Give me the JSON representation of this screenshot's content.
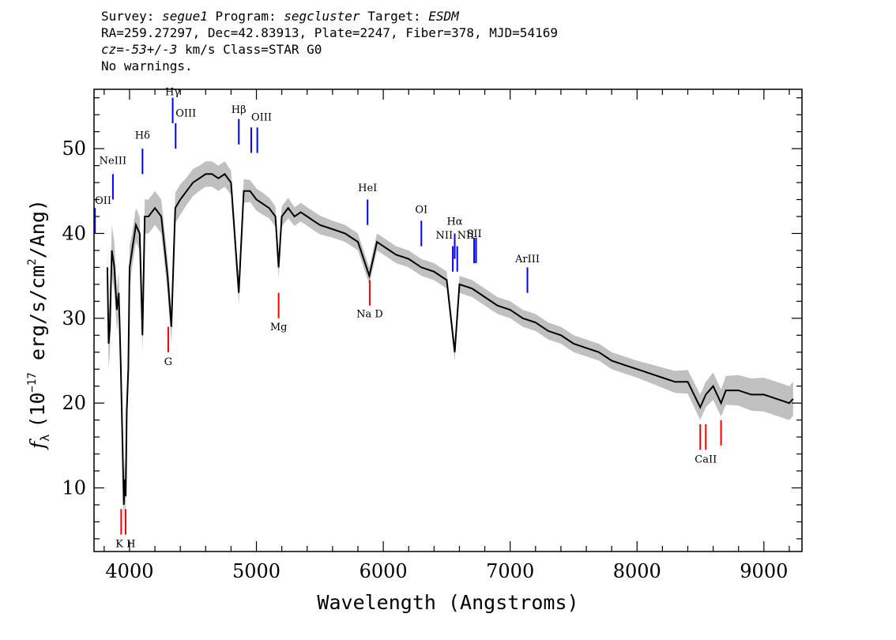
{
  "header": {
    "survey_label": "Survey:",
    "survey": "segue1",
    "program_label": "Program:",
    "program": "segcluster",
    "target_label": "Target:",
    "target": "ESDM",
    "line2": "RA=259.27297, Dec=42.83913, Plate=2247, Fiber=378, MJD=54169",
    "cz_label": "cz=",
    "cz_value": "-53+/-3",
    "cz_rest": " km/s Class=STAR G0",
    "line4": "No warnings."
  },
  "chart_data": {
    "type": "line",
    "xlabel": "Wavelength (Angstroms)",
    "ylabel_text": "f",
    "ylabel_sub": "λ",
    "ylabel_unit_pre": "(10",
    "ylabel_unit_exp": "−17",
    "ylabel_unit_mid": " erg/s/cm",
    "ylabel_unit_exp2": "2",
    "ylabel_unit_post": "/Ang)",
    "xlim": [
      3720,
      9300
    ],
    "ylim": [
      2.5,
      57
    ],
    "x_ticks": [
      4000,
      5000,
      6000,
      7000,
      8000,
      9000
    ],
    "x_tick_labels": [
      "4000",
      "5000",
      "6000",
      "7000",
      "8000",
      "9000"
    ],
    "y_ticks": [
      10,
      20,
      30,
      40,
      50
    ],
    "y_tick_labels": [
      "10",
      "20",
      "30",
      "40",
      "50"
    ],
    "colors": {
      "flux": "#000000",
      "error_band": "#c0c0c0",
      "emission": "#0000ff",
      "absorption": "#ff0000"
    },
    "series": [
      {
        "x": [
          3825,
          3835,
          3845,
          3860,
          3880,
          3900,
          3915,
          3930,
          3945,
          3955,
          3962,
          3970,
          3978,
          3990,
          4000,
          4020,
          4050,
          4080,
          4102,
          4120,
          4150,
          4200,
          4250,
          4300,
          4330,
          4360,
          4400,
          4450,
          4500,
          4550,
          4600,
          4650,
          4700,
          4750,
          4800,
          4861,
          4900,
          4950,
          5000,
          5050,
          5100,
          5150,
          5175,
          5200,
          5250,
          5300,
          5350,
          5400,
          5450,
          5500,
          5600,
          5700,
          5800,
          5890,
          5950,
          6000,
          6100,
          6200,
          6300,
          6400,
          6500,
          6563,
          6600,
          6700,
          6800,
          6900,
          7000,
          7100,
          7200,
          7300,
          7400,
          7500,
          7600,
          7700,
          7800,
          7900,
          8000,
          8100,
          8200,
          8300,
          8400,
          8498,
          8542,
          8600,
          8662,
          8700,
          8800,
          8900,
          9000,
          9100,
          9200,
          9230
        ],
        "y": [
          36,
          27,
          29,
          38,
          36,
          31,
          33,
          25,
          15,
          8,
          11,
          9,
          19,
          24,
          36,
          38,
          41,
          40,
          28,
          42,
          42,
          43,
          42,
          35,
          29,
          43,
          44,
          45,
          46,
          46.5,
          47,
          47,
          46.5,
          47,
          46,
          33,
          45,
          45,
          44,
          43.5,
          43,
          42,
          36,
          42,
          43,
          42,
          42.5,
          42,
          41.5,
          41,
          40.5,
          40,
          39,
          35,
          39,
          38.5,
          37.5,
          37,
          36,
          35.5,
          34.5,
          26,
          34,
          33.5,
          32.5,
          31.5,
          31,
          30,
          29.5,
          28.5,
          28,
          27,
          26.5,
          26,
          25,
          24.5,
          24,
          23.5,
          23,
          22.5,
          22.5,
          19.5,
          21,
          22,
          20,
          21.5,
          21.5,
          21,
          21,
          20.5,
          20,
          20.5
        ],
        "err": [
          3,
          3,
          3,
          3,
          3,
          2.5,
          2.5,
          2.5,
          2.5,
          2.5,
          2.5,
          2.5,
          2.5,
          2.5,
          2.5,
          2,
          2,
          2,
          2,
          2,
          2,
          2,
          2,
          2,
          2,
          1.8,
          1.8,
          1.6,
          1.6,
          1.5,
          1.5,
          1.5,
          1.5,
          1.5,
          1.4,
          1.4,
          1.4,
          1.3,
          1.3,
          1.3,
          1.2,
          1.2,
          1.2,
          1.2,
          1.2,
          1.1,
          1.1,
          1.1,
          1.1,
          1.1,
          1,
          1,
          1,
          1,
          1,
          1,
          1,
          1,
          1,
          1,
          1,
          1,
          1,
          1,
          1,
          1,
          1,
          1,
          1,
          1,
          1,
          1,
          1,
          1,
          1,
          1,
          1,
          1.1,
          1.2,
          1.3,
          1.4,
          1.5,
          1.5,
          1.6,
          1.6,
          1.7,
          1.8,
          1.9,
          2,
          2,
          2,
          2
        ]
      }
    ],
    "emission_lines": [
      {
        "label": "OII",
        "x": 3727,
        "y0": 40,
        "y1": 43,
        "label_y": 43.5,
        "anchor": "start"
      },
      {
        "label": "NeIII",
        "x": 3869,
        "y0": 44,
        "y1": 47,
        "label_y": 48.2,
        "anchor": "middle"
      },
      {
        "label": "Hδ",
        "x": 4102,
        "y0": 47,
        "y1": 50,
        "label_y": 51.2,
        "anchor": "middle"
      },
      {
        "label": "Hγ",
        "x": 4340,
        "y0": 53,
        "y1": 56,
        "label_y": 56.3,
        "anchor": "middle"
      },
      {
        "label": "OIII",
        "x": 4363,
        "y0": 50,
        "y1": 53,
        "label_y": 53.8,
        "anchor": "start"
      },
      {
        "label": "Hβ",
        "x": 4861,
        "y0": 50.5,
        "y1": 53.5,
        "label_y": 54.2,
        "anchor": "middle"
      },
      {
        "label": "OIII",
        "x": 4959,
        "y0": 49.5,
        "y1": 52.5,
        "label_y": 53.3,
        "anchor": "start"
      },
      {
        "label": "",
        "x": 5007,
        "y0": 49.5,
        "y1": 52.5
      },
      {
        "label": "HeI",
        "x": 5876,
        "y0": 41,
        "y1": 44,
        "label_y": 45,
        "anchor": "middle"
      },
      {
        "label": "OI",
        "x": 6300,
        "y0": 38.5,
        "y1": 41.5,
        "label_y": 42.4,
        "anchor": "middle"
      },
      {
        "label": "NII",
        "x": 6548,
        "y0": 35.5,
        "y1": 38.5,
        "label_y": 39.4,
        "anchor": "end"
      },
      {
        "label": "Hα",
        "x": 6563,
        "y0": 37,
        "y1": 40,
        "label_y": 41,
        "anchor": "middle"
      },
      {
        "label": "NII",
        "x": 6583,
        "y0": 35.5,
        "y1": 38.5,
        "label_y": 39.4,
        "anchor": "start"
      },
      {
        "label": "SII",
        "x": 6716,
        "y0": 36.5,
        "y1": 39.5,
        "label_y": 39.6,
        "anchor": "middle"
      },
      {
        "label": "",
        "x": 6731,
        "y0": 36.5,
        "y1": 39.5
      },
      {
        "label": "ArIII",
        "x": 7136,
        "y0": 33,
        "y1": 36,
        "label_y": 36.6,
        "anchor": "middle"
      }
    ],
    "absorption_lines": [
      {
        "label": "K H",
        "x": 3934,
        "y0": 4.5,
        "y1": 7.5,
        "label_y": 3,
        "anchor": "start",
        "label_x": 3890
      },
      {
        "label": "",
        "x": 3969,
        "y0": 4.5,
        "y1": 7.5
      },
      {
        "label": "G",
        "x": 4305,
        "y0": 26,
        "y1": 29,
        "label_y": 24.5,
        "anchor": "middle"
      },
      {
        "label": "Mg",
        "x": 5175,
        "y0": 30,
        "y1": 33,
        "label_y": 28.6,
        "anchor": "middle"
      },
      {
        "label": "Na D",
        "x": 5893,
        "y0": 31.5,
        "y1": 34.5,
        "label_y": 30.1,
        "anchor": "middle"
      },
      {
        "label": "CaII",
        "x": 8498,
        "y0": 14.5,
        "y1": 17.5,
        "label_y": 13,
        "anchor": "middle",
        "label_x": 8542
      },
      {
        "label": "",
        "x": 8542,
        "y0": 14.5,
        "y1": 17.5
      },
      {
        "label": "",
        "x": 8662,
        "y0": 15,
        "y1": 18
      }
    ]
  }
}
